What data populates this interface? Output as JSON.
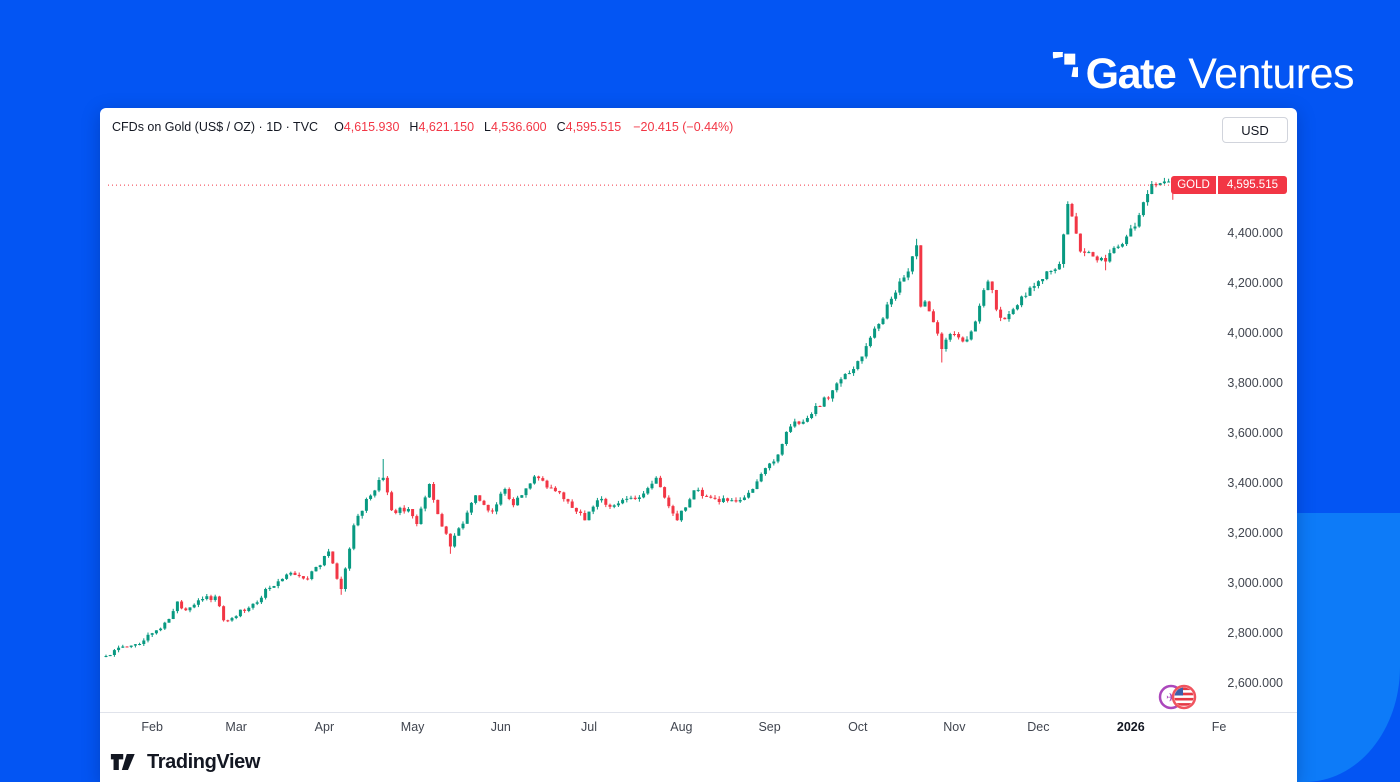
{
  "brand": {
    "name_bold": "Gate",
    "name_light": "Ventures"
  },
  "chart": {
    "header": {
      "title": "CFDs on Gold (US$ / OZ) · 1D · TVC",
      "ohlc": [
        {
          "label": "O",
          "value": "4,615.930"
        },
        {
          "label": "H",
          "value": "4,621.150"
        },
        {
          "label": "L",
          "value": "4,536.600"
        },
        {
          "label": "C",
          "value": "4,595.515"
        }
      ],
      "change": "−20.415 (−0.44%)",
      "currency_button": "USD"
    },
    "price_tag": {
      "symbol": "GOLD",
      "price": "4,595.515"
    }
  },
  "footer": {
    "brand": "TradingView"
  },
  "events": [
    {
      "name": "economic-event-icon-purple"
    },
    {
      "name": "us-economic-event-icon"
    }
  ],
  "theme": {
    "background_blue": "#0355f3",
    "background_blue_light": "#0d7bf8",
    "panel": "#ffffff",
    "text_dark": "#131722",
    "axis_text": "#40454f",
    "up_green": "#089981",
    "down_red": "#f23645"
  },
  "chart_data": {
    "type": "candlestick",
    "symbol": "GOLD (TVC)",
    "title": "CFDs on Gold (US$ / OZ) · 1D · TVC",
    "currency": "USD",
    "timeframe": "1D",
    "grid": false,
    "legend_position": "top-left",
    "x_range": [
      "2025-01-16",
      "2026-01-16"
    ],
    "ylim": [
      2550,
      4700
    ],
    "y_axis": {
      "side": "right",
      "tick_values": [
        4400,
        4200,
        4000,
        3800,
        3600,
        3400,
        3200,
        3000,
        2800,
        2600
      ],
      "tick_labels": [
        "4,400.000",
        "4,200.000",
        "4,000.000",
        "3,800.000",
        "3,600.000",
        "3,400.000",
        "3,200.000",
        "3,000.000",
        "2,800.000",
        "2,600.000"
      ]
    },
    "x_axis": {
      "months": [
        {
          "label": "Feb",
          "date": "2025-02-01",
          "bold": false
        },
        {
          "label": "Mar",
          "date": "2025-03-01",
          "bold": false
        },
        {
          "label": "Apr",
          "date": "2025-04-01",
          "bold": false
        },
        {
          "label": "May",
          "date": "2025-05-01",
          "bold": false
        },
        {
          "label": "Jun",
          "date": "2025-06-01",
          "bold": false
        },
        {
          "label": "Jul",
          "date": "2025-07-01",
          "bold": false
        },
        {
          "label": "Aug",
          "date": "2025-08-01",
          "bold": false
        },
        {
          "label": "Sep",
          "date": "2025-09-01",
          "bold": false
        },
        {
          "label": "Oct",
          "date": "2025-10-01",
          "bold": false
        },
        {
          "label": "Nov",
          "date": "2025-11-01",
          "bold": false
        },
        {
          "label": "Dec",
          "date": "2025-12-01",
          "bold": false
        },
        {
          "label": "2026",
          "date": "2026-01-01",
          "bold": true
        },
        {
          "label": "Fe",
          "date": "2026-02-01",
          "bold": false
        }
      ]
    },
    "last_bar": {
      "open": 4615.93,
      "high": 4621.15,
      "low": 4536.6,
      "close": 4595.515,
      "change": -20.415,
      "change_pct": -0.44,
      "direction": "down"
    },
    "last_price_line": {
      "price": 4595.515,
      "style": "dotted",
      "color": "#f23645"
    },
    "colors": {
      "up": "#089981",
      "down": "#f23645"
    },
    "anchors_close": [
      [
        "2025-01-16",
        2712
      ],
      [
        "2025-01-22",
        2750
      ],
      [
        "2025-01-28",
        2760
      ],
      [
        "2025-02-03",
        2815
      ],
      [
        "2025-02-07",
        2860
      ],
      [
        "2025-02-11",
        2930
      ],
      [
        "2025-02-14",
        2895
      ],
      [
        "2025-02-20",
        2940
      ],
      [
        "2025-02-24",
        2950
      ],
      [
        "2025-02-28",
        2855
      ],
      [
        "2025-03-06",
        2905
      ],
      [
        "2025-03-13",
        2985
      ],
      [
        "2025-03-20",
        3045
      ],
      [
        "2025-03-26",
        3020
      ],
      [
        "2025-04-02",
        3130
      ],
      [
        "2025-04-07",
        2980
      ],
      [
        "2025-04-11",
        3235
      ],
      [
        "2025-04-16",
        3340
      ],
      [
        "2025-04-22",
        3425
      ],
      [
        "2025-04-24",
        3295
      ],
      [
        "2025-04-30",
        3300
      ],
      [
        "2025-05-02",
        3240
      ],
      [
        "2025-05-07",
        3400
      ],
      [
        "2025-05-12",
        3230
      ],
      [
        "2025-05-15",
        3150
      ],
      [
        "2025-05-23",
        3355
      ],
      [
        "2025-05-29",
        3290
      ],
      [
        "2025-06-02",
        3380
      ],
      [
        "2025-06-06",
        3315
      ],
      [
        "2025-06-13",
        3430
      ],
      [
        "2025-06-18",
        3385
      ],
      [
        "2025-06-24",
        3330
      ],
      [
        "2025-06-30",
        3255
      ],
      [
        "2025-07-04",
        3335
      ],
      [
        "2025-07-10",
        3315
      ],
      [
        "2025-07-17",
        3340
      ],
      [
        "2025-07-23",
        3425
      ],
      [
        "2025-07-31",
        3255
      ],
      [
        "2025-08-06",
        3375
      ],
      [
        "2025-08-12",
        3345
      ],
      [
        "2025-08-20",
        3330
      ],
      [
        "2025-08-25",
        3365
      ],
      [
        "2025-08-29",
        3440
      ],
      [
        "2025-09-02",
        3490
      ],
      [
        "2025-09-05",
        3560
      ],
      [
        "2025-09-09",
        3630
      ],
      [
        "2025-09-16",
        3680
      ],
      [
        "2025-09-23",
        3775
      ],
      [
        "2025-09-30",
        3860
      ],
      [
        "2025-10-08",
        4040
      ],
      [
        "2025-10-15",
        4210
      ],
      [
        "2025-10-17",
        4250
      ],
      [
        "2025-10-20",
        4355
      ],
      [
        "2025-10-21",
        4110
      ],
      [
        "2025-10-23",
        4130
      ],
      [
        "2025-10-28",
        3940
      ],
      [
        "2025-10-31",
        4000
      ],
      [
        "2025-11-04",
        3970
      ],
      [
        "2025-11-07",
        4010
      ],
      [
        "2025-11-13",
        4210
      ],
      [
        "2025-11-18",
        4065
      ],
      [
        "2025-11-21",
        4080
      ],
      [
        "2025-11-26",
        4150
      ],
      [
        "2025-12-02",
        4220
      ],
      [
        "2025-12-08",
        4280
      ],
      [
        "2025-12-11",
        4520
      ],
      [
        "2025-12-15",
        4330
      ],
      [
        "2025-12-19",
        4310
      ],
      [
        "2025-12-24",
        4290
      ],
      [
        "2025-12-30",
        4390
      ],
      [
        "2026-01-02",
        4430
      ],
      [
        "2026-01-07",
        4560
      ],
      [
        "2026-01-09",
        4600
      ],
      [
        "2026-01-13",
        4610
      ],
      [
        "2026-01-14",
        4615
      ],
      [
        "2026-01-15",
        4610
      ],
      [
        "2026-01-16",
        4595.5
      ]
    ],
    "pinned_wick_highs": {
      "2025-04-22": 3500,
      "2025-10-20": 4381,
      "2025-12-11": 4531,
      "2026-01-14": 4621.15
    },
    "pinned_wick_lows": {
      "2025-04-07": 2957,
      "2025-05-15": 3121,
      "2025-10-28": 3886,
      "2025-12-24": 4255
    }
  }
}
